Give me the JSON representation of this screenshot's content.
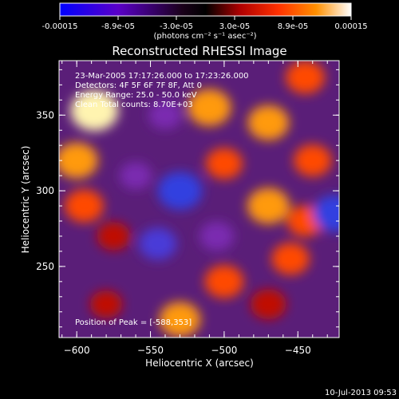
{
  "colorbar": {
    "tick_labels": [
      "-0.00015",
      "-8.9e-05",
      "-3.0e-05",
      "3.0e-05",
      "8.9e-05",
      "0.00015"
    ],
    "unit_label": "(photons cm⁻² s⁻¹ asec⁻²)",
    "colors": [
      "#0000ff",
      "#5a00c8",
      "#2a002a",
      "#000000",
      "#b00000",
      "#ff3000",
      "#ff9000",
      "#ffffff"
    ]
  },
  "plot": {
    "title": "Reconstructed RHESSI Image",
    "annotations": [
      "23-Mar-2005 17:17:26.000 to 17:23:26.000",
      "Detectors: 4F 5F 6F 7F 8F, Att 0",
      "Energy Range: 25.0 - 50.0 keV",
      "Clean    Total counts: 8.70E+03"
    ],
    "peak_label": "Position of Peak = [-588,353]"
  },
  "footer": {
    "timestamp": "10-Jul-2013 09:53"
  },
  "chart_data": {
    "type": "heatmap",
    "title": "Reconstructed RHESSI Image",
    "xlabel": "Heliocentric X (arcsec)",
    "ylabel": "Heliocentric Y (arcsec)",
    "xlim": [
      -612,
      -422
    ],
    "ylim": [
      203,
      386
    ],
    "x_ticks": [
      -600,
      -550,
      -500,
      -450
    ],
    "x_tick_labels": [
      "−600",
      "−550",
      "−500",
      "−450"
    ],
    "y_ticks": [
      250,
      300,
      350
    ],
    "y_tick_labels": [
      "250",
      "300",
      "350"
    ],
    "colorbar_range": [
      -0.00015,
      0.00015
    ],
    "peak": [
      -588,
      353
    ],
    "grid": false,
    "blobs": [
      {
        "x": -588,
        "y": 353,
        "value": 1.0
      },
      {
        "x": -600,
        "y": 320,
        "value": 0.75
      },
      {
        "x": -595,
        "y": 290,
        "value": 0.6
      },
      {
        "x": -575,
        "y": 270,
        "value": 0.35
      },
      {
        "x": -560,
        "y": 310,
        "value": -0.3
      },
      {
        "x": -530,
        "y": 300,
        "value": -0.85
      },
      {
        "x": -545,
        "y": 265,
        "value": -0.55
      },
      {
        "x": -510,
        "y": 355,
        "value": 0.8
      },
      {
        "x": -500,
        "y": 318,
        "value": 0.5
      },
      {
        "x": -470,
        "y": 345,
        "value": 0.7
      },
      {
        "x": -445,
        "y": 375,
        "value": 0.6
      },
      {
        "x": -440,
        "y": 320,
        "value": 0.55
      },
      {
        "x": -470,
        "y": 290,
        "value": 0.75
      },
      {
        "x": -445,
        "y": 280,
        "value": 0.5
      },
      {
        "x": -425,
        "y": 285,
        "value": -0.8
      },
      {
        "x": -500,
        "y": 240,
        "value": 0.6
      },
      {
        "x": -530,
        "y": 215,
        "value": 0.7
      },
      {
        "x": -470,
        "y": 225,
        "value": 0.45
      },
      {
        "x": -505,
        "y": 270,
        "value": -0.4
      },
      {
        "x": -540,
        "y": 350,
        "value": -0.35
      },
      {
        "x": -580,
        "y": 225,
        "value": 0.3
      },
      {
        "x": -455,
        "y": 255,
        "value": 0.55
      }
    ]
  }
}
